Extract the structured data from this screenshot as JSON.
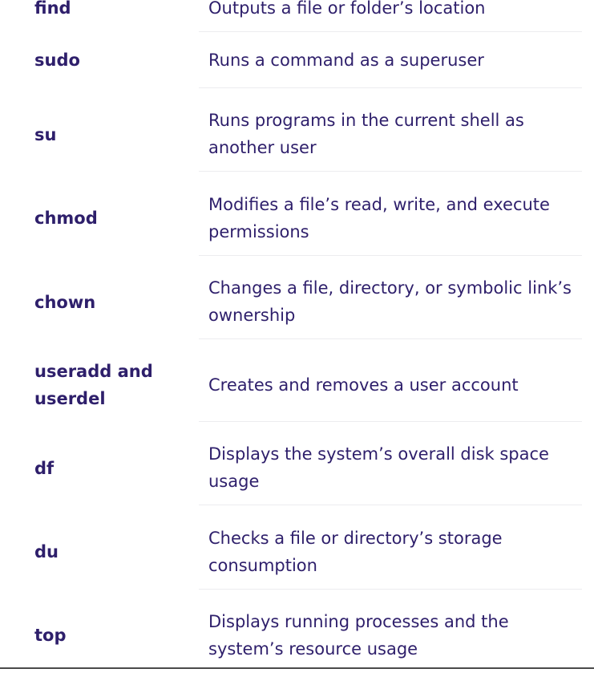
{
  "rows": [
    {
      "command": "find",
      "description": "Outputs a file or folder’s location"
    },
    {
      "command": "sudo",
      "description": "Runs a command as a superuser"
    },
    {
      "command": "su",
      "description": "Runs programs in the current shell as another user"
    },
    {
      "command": "chmod",
      "description": "Modifies a file’s read, write, and execute permissions"
    },
    {
      "command": "chown",
      "description": "Changes a file, directory, or symbolic link’s ownership"
    },
    {
      "command": "useradd and userdel",
      "description": "Creates and removes a user account"
    },
    {
      "command": "df",
      "description": "Displays the system’s overall disk space usage"
    },
    {
      "command": "du",
      "description": "Checks a file or directory’s storage consumption"
    },
    {
      "command": "top",
      "description": "Displays running processes and the system’s resource usage"
    }
  ]
}
